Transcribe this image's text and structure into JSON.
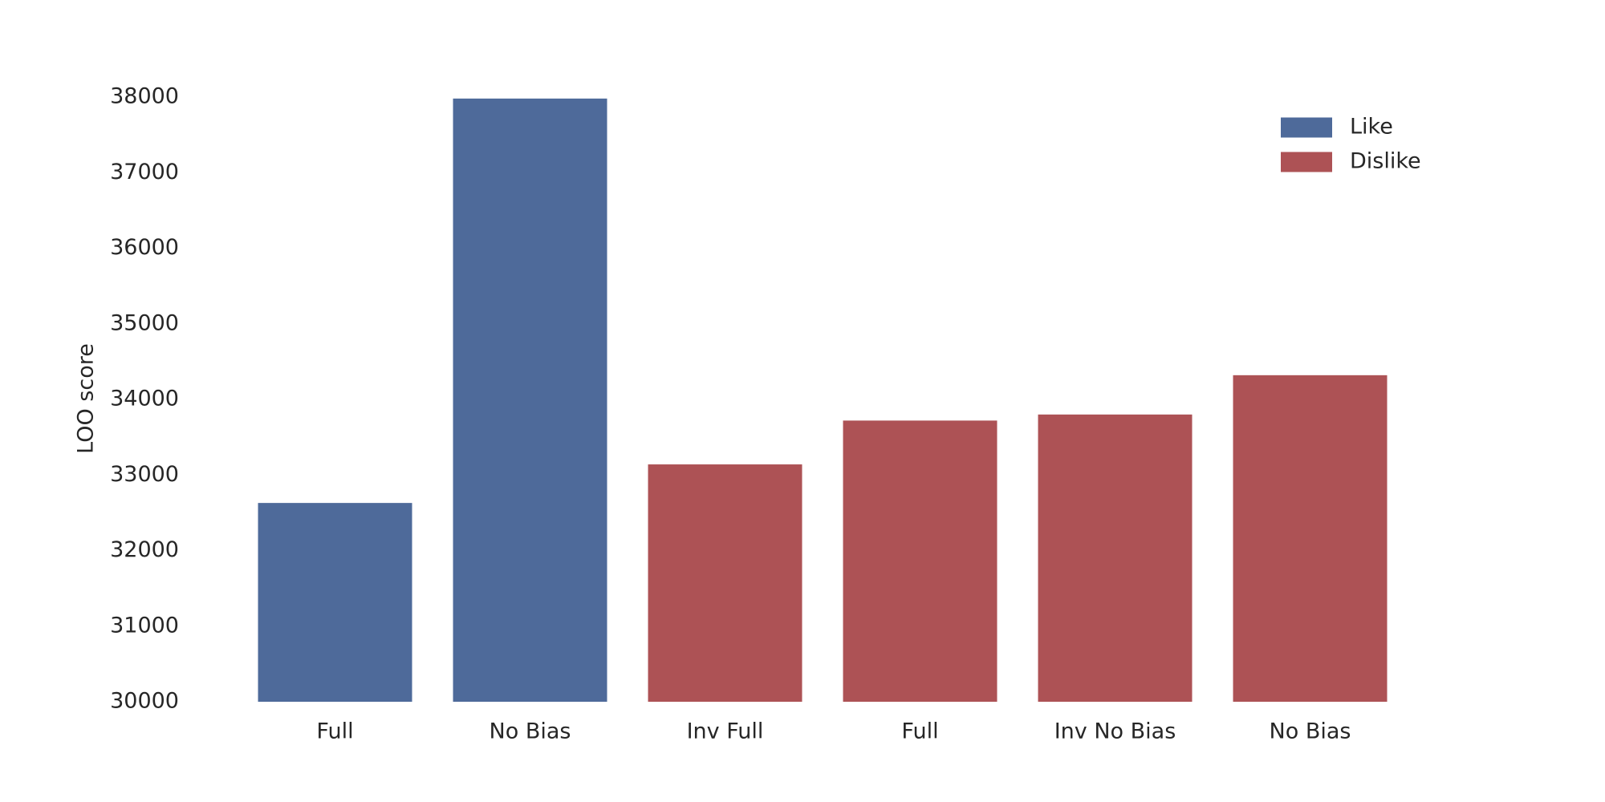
{
  "chart_data": {
    "type": "bar",
    "categories": [
      "Full",
      "No Bias",
      "Inv Full",
      "Full",
      "Inv No Bias",
      "No Bias"
    ],
    "series": [
      {
        "name": "Like",
        "color": "#4e6a9a",
        "values": [
          32630,
          37980,
          null,
          null,
          null,
          null
        ]
      },
      {
        "name": "Dislike",
        "color": "#ad5255",
        "values": [
          null,
          null,
          33140,
          33720,
          33800,
          34320
        ]
      }
    ],
    "ylabel": "LOO score",
    "ylim": [
      30000,
      38000
    ],
    "yticks": [
      30000,
      31000,
      32000,
      33000,
      34000,
      35000,
      36000,
      37000,
      38000
    ],
    "grid": false,
    "legend": "upper right"
  }
}
